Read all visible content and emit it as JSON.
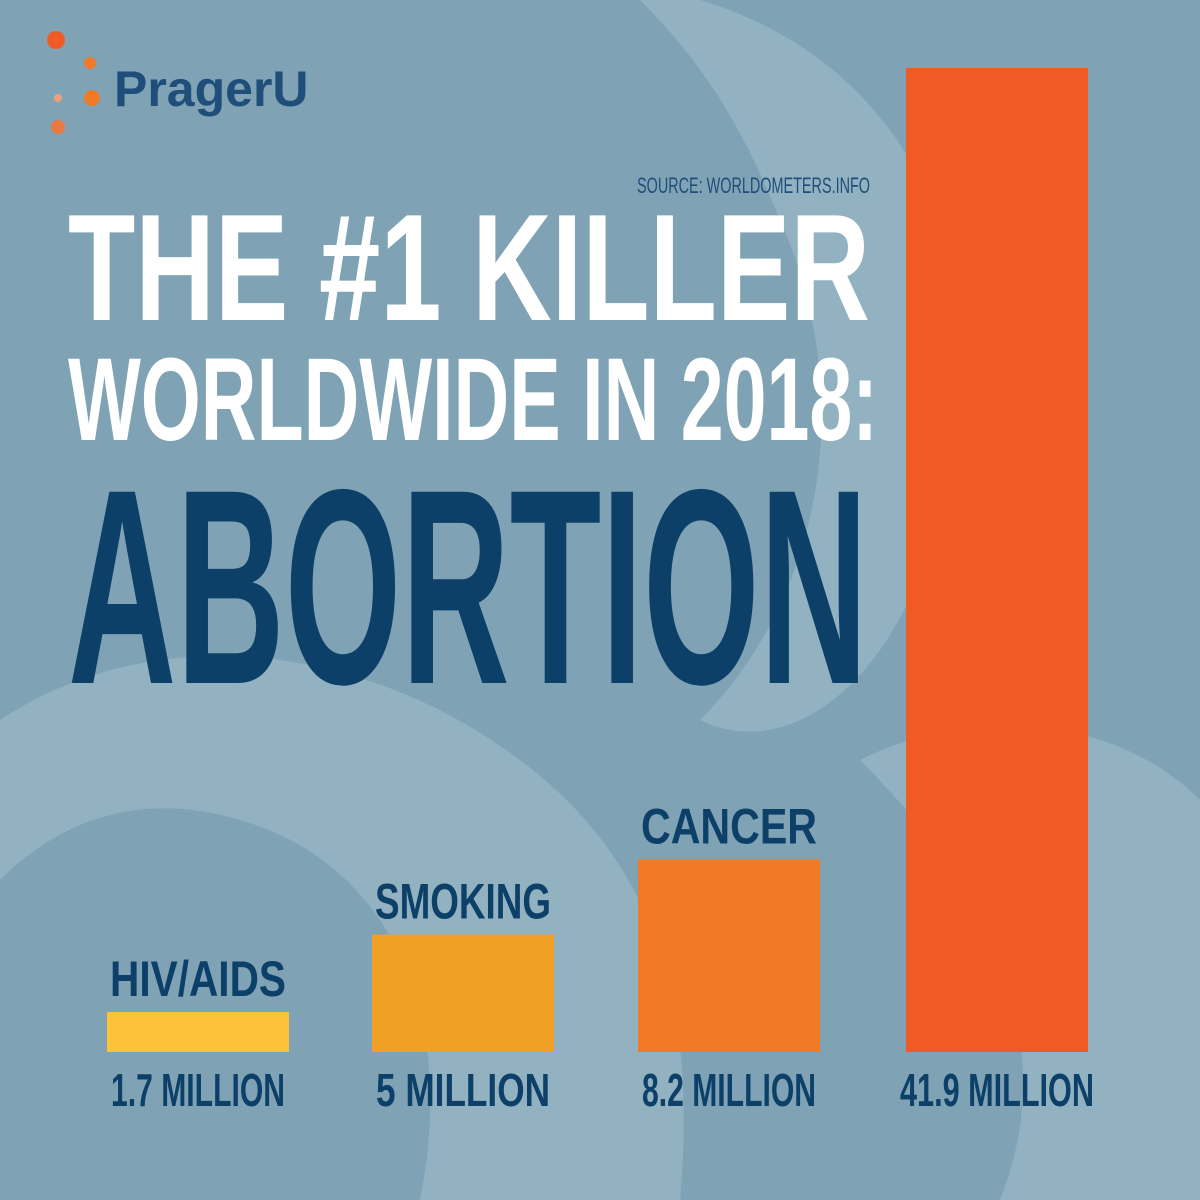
{
  "brand": "PragerU",
  "chart_data": {
    "type": "bar",
    "source": "SOURCE: WORLDOMETERS.INFO",
    "title": "THE #1 KILLER",
    "subtitle": "WORLDWIDE IN 2018:",
    "headline": "ABORTION",
    "categories": [
      "HIV/AIDS",
      "SMOKING",
      "CANCER",
      null
    ],
    "values": [
      1.7,
      5,
      8.2,
      41.9
    ],
    "value_labels": [
      "1.7 MILLION",
      "5 MILLION",
      "8.2 MILLION",
      "41.9 MILLION"
    ],
    "colors": [
      "#fcc33a",
      "#f0a024",
      "#f07a26",
      "#f05a24"
    ]
  }
}
